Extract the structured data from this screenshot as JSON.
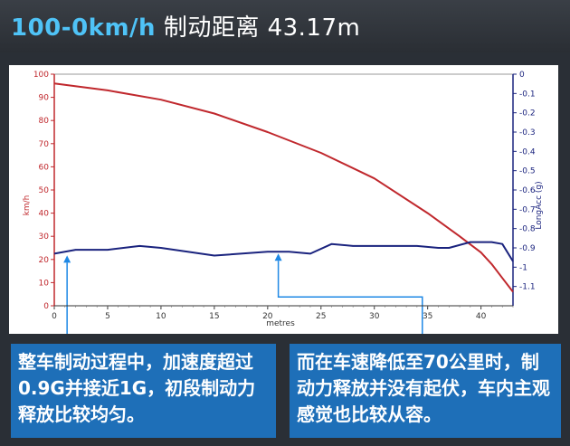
{
  "header": {
    "title_speed": "100-0km/h",
    "title_rest": "制动距离 43.17m"
  },
  "notes": {
    "left": "整车制动过程中，加速度超过0.9G并接近1G，初段制动力释放比较均匀。",
    "right": "而在车速降低至70公里时，制动力释放并没有起伏，车内主观感觉也比较从容。"
  },
  "chart_data": {
    "type": "line",
    "xlabel": "metres",
    "ylabel": "km/h",
    "y2label": "LongAcc (g)",
    "xlim": [
      0,
      43
    ],
    "ylim": [
      0,
      100
    ],
    "y2lim": [
      -1.2,
      0
    ],
    "x_ticks": [
      "0",
      "5",
      "10",
      "15",
      "20",
      "25",
      "30",
      "35",
      "40"
    ],
    "y_ticks": [
      "0",
      "10",
      "20",
      "30",
      "40",
      "50",
      "60",
      "70",
      "80",
      "90",
      "100"
    ],
    "y2_ticks": [
      "0",
      "-0.1",
      "-0.2",
      "-0.3",
      "-0.4",
      "-0.5",
      "-0.6",
      "-0.7",
      "-0.8",
      "-0.9",
      "-1",
      "-1.1"
    ],
    "grid": false,
    "series": [
      {
        "name": "",
        "axis": "left",
        "color": "#c0282d",
        "x": [
          0,
          5,
          10,
          15,
          20,
          25,
          30,
          35,
          38,
          40,
          41,
          42,
          43
        ],
        "y": [
          96,
          93,
          89,
          83,
          75,
          66,
          55,
          40,
          30,
          23,
          18,
          12,
          6
        ]
      },
      {
        "name": "",
        "axis": "right",
        "color": "#1a237e",
        "x": [
          0,
          2,
          5,
          8,
          10,
          15,
          20,
          22,
          24,
          26,
          28,
          30,
          32,
          34,
          36,
          37,
          39,
          41,
          42,
          43
        ],
        "y": [
          -0.93,
          -0.91,
          -0.91,
          -0.89,
          -0.9,
          -0.94,
          -0.92,
          -0.92,
          -0.93,
          -0.88,
          -0.89,
          -0.89,
          -0.89,
          -0.89,
          -0.9,
          -0.9,
          -0.87,
          -0.87,
          -0.88,
          -0.97
        ]
      }
    ],
    "callouts": [
      {
        "x": 1.2,
        "y2": -0.93,
        "target": "left"
      },
      {
        "x": 21,
        "y2": -0.92,
        "target": "right"
      }
    ],
    "colors": {
      "left_axis": "#c0282d",
      "right_axis": "#1a237e",
      "callout": "#1e88e5"
    }
  }
}
